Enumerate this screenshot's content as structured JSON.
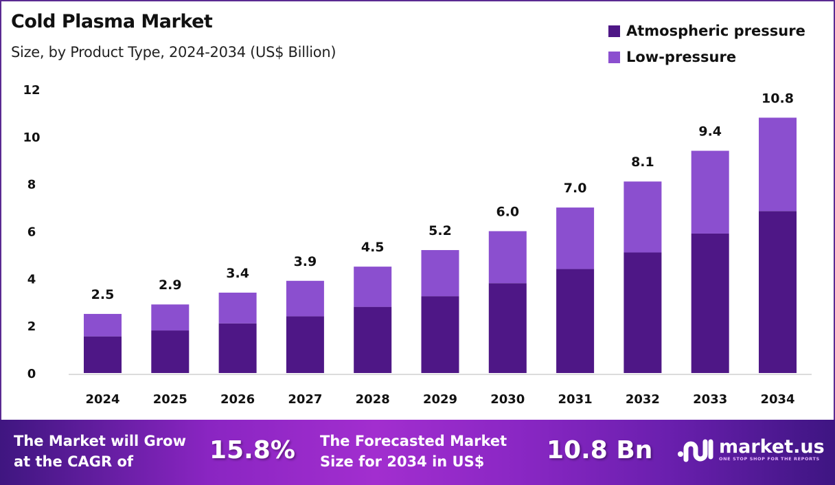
{
  "chart_data": {
    "type": "bar",
    "stacked": true,
    "title": "Cold Plasma Market",
    "subtitle": "Size, by Product Type, 2024-2034 (US$ Billion)",
    "xlabel": "",
    "ylabel": "",
    "ylim": [
      0,
      12
    ],
    "yticks": [
      0,
      2,
      4,
      6,
      8,
      10,
      12
    ],
    "grid": false,
    "legend_position": "top-right",
    "categories": [
      "2024",
      "2025",
      "2026",
      "2027",
      "2028",
      "2029",
      "2030",
      "2031",
      "2032",
      "2033",
      "2034"
    ],
    "series": [
      {
        "name": "Atmospheric pressure",
        "color": "#4e1786",
        "values": [
          1.55,
          1.8,
          2.1,
          2.4,
          2.8,
          3.25,
          3.8,
          4.4,
          5.1,
          5.9,
          6.85
        ]
      },
      {
        "name": "Low-pressure",
        "color": "#8b4fcf",
        "values": [
          0.95,
          1.1,
          1.3,
          1.5,
          1.7,
          1.95,
          2.2,
          2.6,
          3.0,
          3.5,
          3.95
        ]
      }
    ],
    "totals": [
      "2.5",
      "2.9",
      "3.4",
      "3.9",
      "4.5",
      "5.2",
      "6.0",
      "7.0",
      "8.1",
      "9.4",
      "10.8"
    ]
  },
  "banner": {
    "cagr_label_line1": "The Market will Grow",
    "cagr_label_line2": "at the CAGR of",
    "cagr_value": "15.8%",
    "forecast_label_line1": "The Forecasted Market",
    "forecast_label_line2": "Size for 2034 in US$",
    "forecast_value": "10.8 Bn",
    "logo_name": "market.us",
    "logo_tagline": "ONE STOP SHOP FOR THE REPORTS"
  },
  "colors": {
    "accent": "#4e1786",
    "banner": "#a22ecf"
  }
}
